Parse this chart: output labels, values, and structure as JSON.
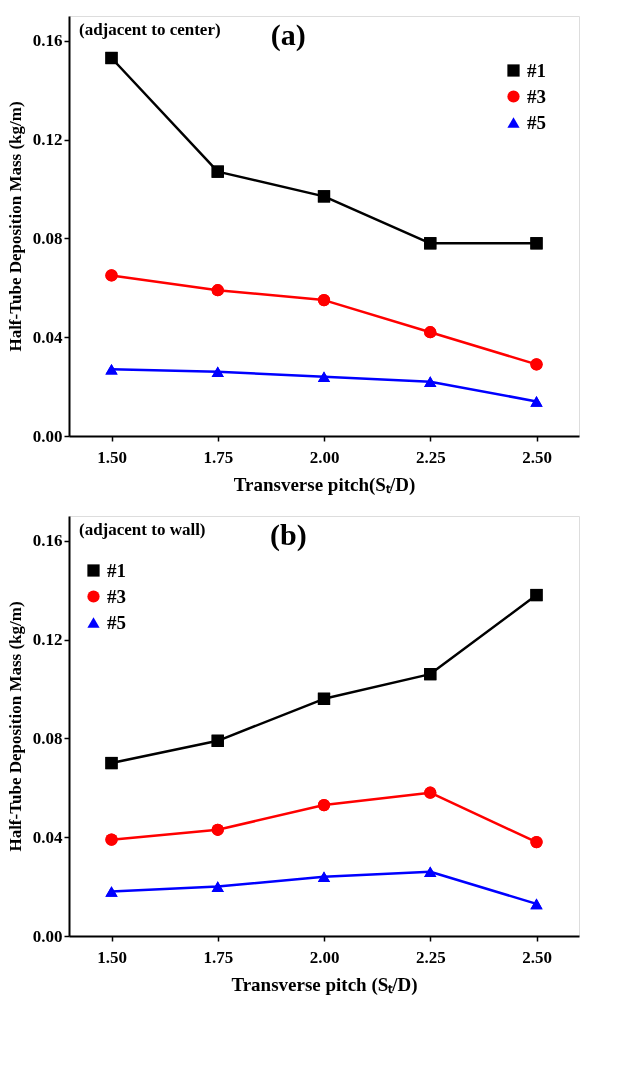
{
  "chart_data": [
    {
      "type": "line",
      "xlabel": "Transverse pitch(Sₜ/D)",
      "ylabel": "Half-Tube Deposition Mass (kg/m)",
      "annotations": [
        "(adjacent to center)",
        "(a)"
      ],
      "x": [
        1.5,
        1.75,
        2.0,
        2.25,
        2.5
      ],
      "series": [
        {
          "name": "#1",
          "color": "#000000",
          "marker": "square",
          "values": [
            0.153,
            0.107,
            0.097,
            0.078,
            0.078
          ]
        },
        {
          "name": "#3",
          "color": "#ff0000",
          "marker": "circle",
          "values": [
            0.065,
            0.059,
            0.055,
            0.042,
            0.029
          ]
        },
        {
          "name": "#5",
          "color": "#0000ff",
          "marker": "triangle",
          "values": [
            0.027,
            0.026,
            0.024,
            0.022,
            0.014
          ]
        }
      ],
      "xlim": [
        1.4,
        2.6
      ],
      "ylim": [
        0,
        0.17
      ],
      "xticks": [
        {
          "value": 1.5,
          "label": "1.50"
        },
        {
          "value": 1.75,
          "label": "1.75"
        },
        {
          "value": 2.0,
          "label": "2.00"
        },
        {
          "value": 2.25,
          "label": "2.25"
        },
        {
          "value": 2.5,
          "label": "2.50"
        }
      ],
      "yticks": [
        {
          "value": 0,
          "label": "0.00"
        },
        {
          "value": 0.04,
          "label": "0.04"
        },
        {
          "value": 0.08,
          "label": "0.08"
        },
        {
          "value": 0.12,
          "label": "0.12"
        },
        {
          "value": 0.16,
          "label": "0.16"
        }
      ],
      "legend": "top right",
      "grid": false,
      "line_style": "solid"
    },
    {
      "type": "line",
      "xlabel": "Transverse pitch (Sₜ/D)",
      "ylabel": "Half-Tube Deposition Mass (kg/m)",
      "annotations": [
        "(adjacent to wall)",
        "(b)"
      ],
      "x": [
        1.5,
        1.75,
        2.0,
        2.25,
        2.5
      ],
      "series": [
        {
          "name": "#1",
          "color": "#000000",
          "marker": "square",
          "values": [
            0.07,
            0.079,
            0.096,
            0.106,
            0.138
          ]
        },
        {
          "name": "#3",
          "color": "#ff0000",
          "marker": "circle",
          "values": [
            0.039,
            0.043,
            0.053,
            0.058,
            0.038
          ]
        },
        {
          "name": "#5",
          "color": "#0000ff",
          "marker": "triangle",
          "values": [
            0.018,
            0.02,
            0.024,
            0.026,
            0.013
          ]
        }
      ],
      "xlim": [
        1.4,
        2.6
      ],
      "ylim": [
        0,
        0.17
      ],
      "xticks": [
        {
          "value": 1.5,
          "label": "1.50"
        },
        {
          "value": 1.75,
          "label": "1.75"
        },
        {
          "value": 2.0,
          "label": "2.00"
        },
        {
          "value": 2.25,
          "label": "2.25"
        },
        {
          "value": 2.5,
          "label": "2.50"
        }
      ],
      "yticks": [
        {
          "value": 0,
          "label": "0.00"
        },
        {
          "value": 0.04,
          "label": "0.04"
        },
        {
          "value": 0.08,
          "label": "0.08"
        },
        {
          "value": 0.12,
          "label": "0.12"
        },
        {
          "value": 0.16,
          "label": "0.16"
        }
      ],
      "legend": "top left",
      "grid": false,
      "line_style": "solid"
    }
  ]
}
